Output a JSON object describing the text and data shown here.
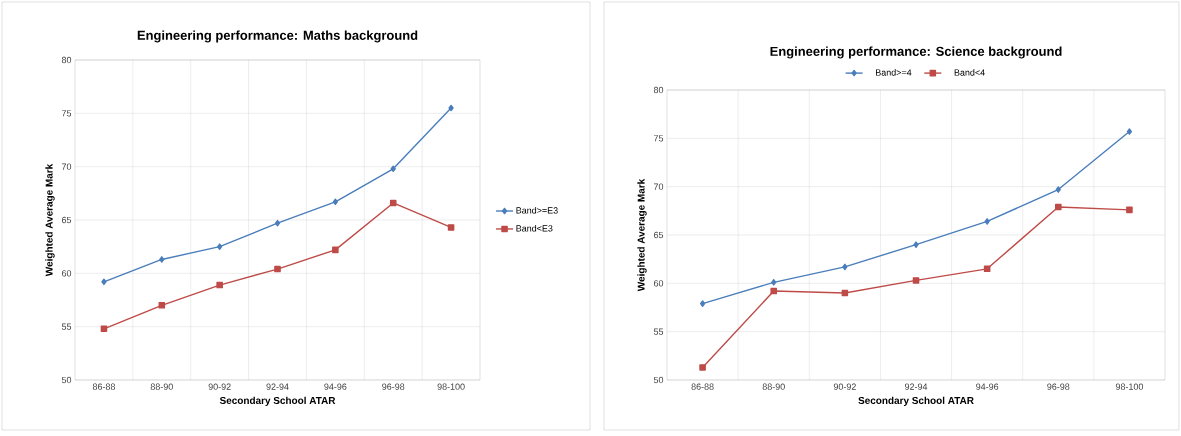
{
  "chart_data": [
    {
      "type": "line",
      "title": "Engineering performance: Maths background",
      "xlabel": "Secondary School ATAR",
      "ylabel": "Weighted Average Mark",
      "categories": [
        "86-88",
        "88-90",
        "90-92",
        "92-94",
        "94-96",
        "96-98",
        "98-100"
      ],
      "series": [
        {
          "name": "Band>=E3",
          "color": "#4a7ebb",
          "marker": "diamond",
          "values": [
            59.2,
            61.3,
            62.5,
            64.7,
            66.7,
            69.8,
            75.5
          ]
        },
        {
          "name": "Band<E3",
          "color": "#be4b48",
          "marker": "square",
          "values": [
            54.8,
            57.0,
            58.9,
            60.4,
            62.2,
            66.6,
            64.3
          ]
        }
      ],
      "ylim": [
        50,
        80
      ],
      "yticks": [
        50,
        55,
        60,
        65,
        70,
        75,
        80
      ],
      "grid": true,
      "legend": "right"
    },
    {
      "type": "line",
      "title": "Engineering performance: Science background",
      "xlabel": "Secondary School ATAR",
      "ylabel": "Weighted Average Mark",
      "categories": [
        "86-88",
        "88-90",
        "90-92",
        "92-94",
        "94-96",
        "96-98",
        "98-100"
      ],
      "series": [
        {
          "name": "Band>=4",
          "color": "#4a7ebb",
          "marker": "diamond",
          "values": [
            57.9,
            60.1,
            61.7,
            64.0,
            66.4,
            69.7,
            75.7
          ]
        },
        {
          "name": "Band<4",
          "color": "#be4b48",
          "marker": "square",
          "values": [
            51.3,
            59.2,
            59.0,
            60.3,
            61.5,
            67.9,
            67.6
          ]
        }
      ],
      "ylim": [
        50,
        80
      ],
      "yticks": [
        50,
        55,
        60,
        65,
        70,
        75,
        80
      ],
      "grid": true,
      "legend": "top"
    }
  ]
}
